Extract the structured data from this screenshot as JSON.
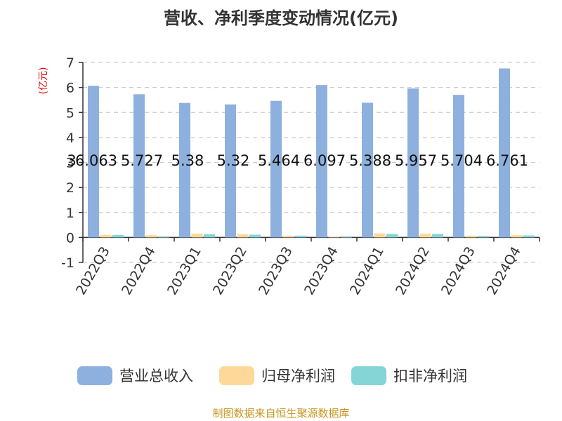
{
  "chart_data": {
    "type": "bar",
    "title": "营收、净利季度变动情况(亿元)",
    "ylabel": "(亿元)",
    "ylim": [
      -1,
      7
    ],
    "yticks": [
      -1,
      0,
      1,
      2,
      3,
      4,
      5,
      6,
      7
    ],
    "grid": true,
    "legend_position": "bottom",
    "categories": [
      "2022Q3",
      "2022Q4",
      "2023Q1",
      "2023Q2",
      "2023Q3",
      "2023Q4",
      "2024Q1",
      "2024Q2",
      "2024Q3",
      "2024Q4"
    ],
    "series": [
      {
        "name": "营业总收入",
        "color": "#8eb0de",
        "values": [
          6.063,
          5.727,
          5.38,
          5.32,
          5.464,
          6.097,
          5.388,
          5.957,
          5.704,
          6.761
        ],
        "labels": [
          "6.063",
          "5.727",
          "5.38",
          "5.32",
          "5.464",
          "6.097",
          "5.388",
          "5.957",
          "5.704",
          "6.761"
        ]
      },
      {
        "name": "归母净利润",
        "color": "#fdd898",
        "values": [
          0.1,
          0.09,
          0.15,
          0.13,
          0.07,
          0.02,
          0.16,
          0.15,
          0.07,
          0.09
        ]
      },
      {
        "name": "扣非净利润",
        "color": "#85d5d7",
        "values": [
          0.1,
          0.0,
          0.13,
          0.11,
          0.07,
          0.0,
          0.14,
          0.14,
          0.06,
          0.08
        ]
      }
    ],
    "extra_labels": [
      "3"
    ]
  },
  "source": "制图数据来自恒生聚源数据库"
}
